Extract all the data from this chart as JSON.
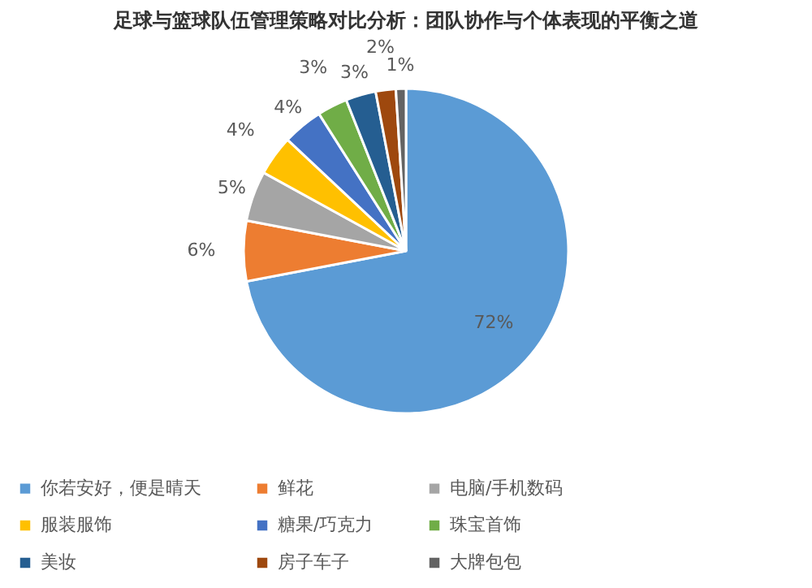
{
  "chart_data": {
    "type": "pie",
    "title": "足球与篮球队伍管理策略对比分析：团队协作与个体表现的平衡之道",
    "categories": [
      "你若安好，便是晴天",
      "鲜花",
      "电脑/手机数码",
      "服装服饰",
      "糖果/巧克力",
      "珠宝首饰",
      "美妆",
      "房子车子",
      "大牌包包"
    ],
    "values": [
      72,
      6,
      5,
      4,
      4,
      3,
      3,
      2,
      1
    ],
    "value_labels": [
      "72%",
      "6%",
      "5%",
      "4%",
      "4%",
      "3%",
      "3%",
      "2%",
      "1%"
    ],
    "colors": [
      "#5b9bd5",
      "#ed7d31",
      "#a5a5a5",
      "#ffc000",
      "#4472c4",
      "#70ad47",
      "#255e91",
      "#9e480e",
      "#636363"
    ],
    "legend": "bottom"
  }
}
